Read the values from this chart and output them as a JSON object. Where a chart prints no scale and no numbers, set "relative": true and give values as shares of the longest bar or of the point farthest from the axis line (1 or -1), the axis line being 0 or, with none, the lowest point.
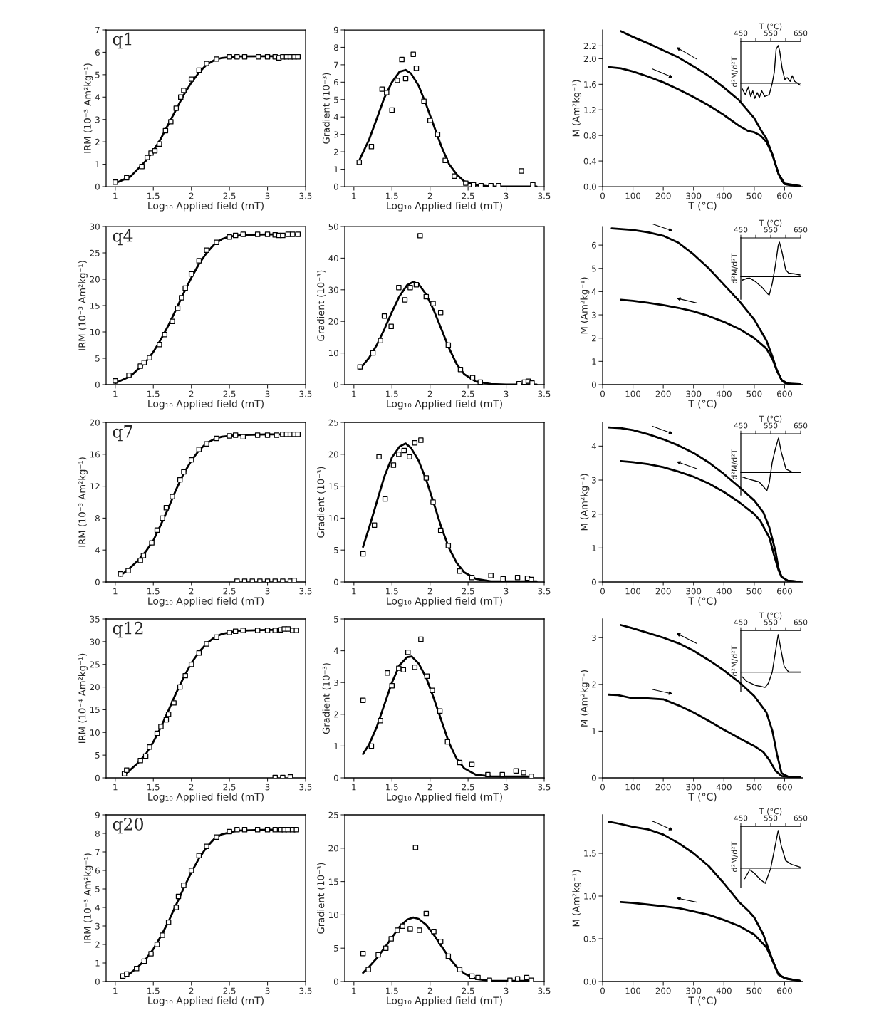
{
  "chart_data": [
    {
      "type": "scatter",
      "title": "q1",
      "xlabel": "Log₁₀ Applied field (mT)",
      "ylabel": "IRM (10⁻³ Am²kg⁻¹)",
      "xlim": [
        0.88,
        3.5
      ],
      "xticks": [
        1,
        1.5,
        2,
        2.5,
        3,
        3.5
      ],
      "ylim": [
        0,
        7
      ],
      "yticks": [
        0,
        1,
        2,
        3,
        4,
        5,
        6,
        7
      ],
      "series": [
        {
          "type": "scatter",
          "marker": "square",
          "color": "#000000",
          "x": [
            1.0,
            1.15,
            1.35,
            1.42,
            1.47,
            1.52,
            1.58,
            1.66,
            1.73,
            1.8,
            1.86,
            1.9,
            2.0,
            2.1,
            2.2,
            2.33,
            2.5,
            2.6,
            2.7,
            2.88,
            3.0,
            3.1,
            3.15,
            3.2,
            3.25,
            3.3,
            3.35,
            3.4
          ],
          "values": [
            0.2,
            0.4,
            0.9,
            1.3,
            1.5,
            1.6,
            1.9,
            2.5,
            2.9,
            3.5,
            4.0,
            4.3,
            4.8,
            5.2,
            5.5,
            5.7,
            5.8,
            5.8,
            5.8,
            5.8,
            5.8,
            5.8,
            5.75,
            5.8,
            5.8,
            5.8,
            5.8,
            5.8
          ]
        },
        {
          "type": "line",
          "color": "#000000",
          "x": [
            1.0,
            1.2,
            1.4,
            1.5,
            1.6,
            1.7,
            1.8,
            1.9,
            2.0,
            2.1,
            2.2,
            2.3,
            2.4,
            2.6,
            3.0,
            3.4
          ],
          "values": [
            0.15,
            0.45,
            1.15,
            1.6,
            2.15,
            2.8,
            3.45,
            4.1,
            4.65,
            5.1,
            5.45,
            5.65,
            5.75,
            5.82,
            5.83,
            5.83
          ]
        }
      ]
    },
    {
      "type": "scatter",
      "xlabel": "Log₁₀ Applied field (mT)",
      "ylabel": "Gradient (10⁻³)",
      "xlim": [
        0.88,
        3.5
      ],
      "xticks": [
        1,
        1.5,
        2,
        2.5,
        3,
        3.5
      ],
      "ylim": [
        0,
        9
      ],
      "yticks": [
        0,
        1,
        2,
        3,
        4,
        5,
        6,
        7,
        8,
        9
      ],
      "series": [
        {
          "type": "scatter",
          "marker": "square",
          "color": "#000000",
          "x": [
            1.07,
            1.23,
            1.37,
            1.43,
            1.5,
            1.57,
            1.63,
            1.68,
            1.78,
            1.82,
            1.92,
            2.0,
            2.1,
            2.2,
            2.32,
            2.47,
            2.57,
            2.67,
            2.8,
            2.9,
            3.2,
            3.35
          ],
          "values": [
            1.4,
            2.3,
            5.6,
            5.4,
            4.4,
            6.1,
            7.3,
            6.2,
            7.6,
            6.8,
            4.9,
            3.8,
            3.0,
            1.5,
            0.6,
            0.2,
            0.1,
            0.05,
            0.05,
            0.05,
            0.9,
            0.1
          ]
        },
        {
          "type": "line",
          "color": "#000000",
          "x": [
            1.07,
            1.2,
            1.3,
            1.4,
            1.5,
            1.6,
            1.68,
            1.75,
            1.85,
            1.95,
            2.05,
            2.15,
            2.25,
            2.35,
            2.45,
            2.6,
            2.8,
            3.4
          ],
          "values": [
            1.5,
            2.7,
            3.9,
            5.1,
            6.0,
            6.6,
            6.7,
            6.5,
            5.8,
            4.7,
            3.5,
            2.3,
            1.3,
            0.7,
            0.3,
            0.1,
            0.0,
            0.0
          ]
        }
      ]
    },
    {
      "type": "line",
      "xlabel": "T (°C)",
      "ylabel": "M (Am²kg⁻¹)",
      "xlim": [
        0,
        660
      ],
      "xticks": [
        0,
        100,
        200,
        300,
        400,
        500,
        600
      ],
      "ylim": [
        0,
        2.45
      ],
      "yticks": [
        {
          "value": 0,
          "label": "0.0"
        },
        0.4,
        0.8,
        1.2,
        1.6,
        {
          "value": 2,
          "label": "2.0"
        },
        2.2
      ],
      "series": [
        {
          "color": "#000000",
          "x": [
            20,
            60,
            100,
            150,
            200,
            250,
            300,
            350,
            400,
            450,
            480,
            500,
            520,
            540,
            560,
            570,
            580,
            590,
            600,
            620,
            650
          ],
          "values": [
            1.87,
            1.85,
            1.8,
            1.72,
            1.63,
            1.52,
            1.4,
            1.27,
            1.12,
            0.95,
            0.87,
            0.85,
            0.8,
            0.7,
            0.5,
            0.35,
            0.2,
            0.1,
            0.04,
            0.02,
            0.01
          ]
        },
        {
          "color": "#000000",
          "x": [
            650,
            600,
            580,
            560,
            540,
            520,
            500,
            450,
            400,
            350,
            300,
            250,
            200,
            150,
            100,
            60
          ],
          "values": [
            0.01,
            0.05,
            0.2,
            0.5,
            0.75,
            0.9,
            1.07,
            1.35,
            1.55,
            1.73,
            1.88,
            2.02,
            2.13,
            2.24,
            2.34,
            2.43
          ]
        }
      ]
    },
    {
      "type": "line",
      "relative": true,
      "xlabel": "T (°C)",
      "ylabel": "d²M/d²T",
      "xlim": [
        450,
        650
      ],
      "xticks": [
        450,
        {
          "value": 500,
          "label": null
        },
        550,
        {
          "value": 600,
          "label": null
        },
        650
      ],
      "series": [
        {
          "color": "#000000",
          "x": [
            455,
            465,
            475,
            483,
            490,
            497,
            505,
            512,
            520,
            530,
            545,
            555,
            562,
            568,
            575,
            580,
            588,
            597,
            605,
            615,
            622,
            630,
            640,
            648
          ],
          "values": [
            -0.15,
            -0.3,
            -0.1,
            -0.35,
            -0.2,
            -0.4,
            -0.25,
            -0.38,
            -0.2,
            -0.35,
            -0.3,
            0.0,
            0.3,
            0.9,
            1.0,
            0.85,
            0.4,
            0.1,
            0.15,
            0.05,
            0.2,
            0.05,
            0.0,
            -0.05
          ]
        }
      ]
    },
    {
      "type": "scatter",
      "title": "q4",
      "xlabel": "Log₁₀ Applied field (mT)",
      "ylabel": "IRM (10⁻³ Am²kg⁻¹)",
      "xlim": [
        0.88,
        3.5
      ],
      "xticks": [
        1,
        1.5,
        2,
        2.5,
        3,
        3.5
      ],
      "ylim": [
        0,
        30
      ],
      "yticks": [
        0,
        5,
        10,
        15,
        20,
        25,
        30
      ],
      "series": [
        {
          "type": "scatter",
          "marker": "square",
          "color": "#000000",
          "x": [
            1.0,
            1.18,
            1.33,
            1.38,
            1.45,
            1.58,
            1.65,
            1.75,
            1.82,
            1.87,
            1.92,
            2.0,
            2.1,
            2.2,
            2.33,
            2.5,
            2.58,
            2.68,
            2.87,
            3.0,
            3.1,
            3.15,
            3.2,
            3.27,
            3.33,
            3.4
          ],
          "values": [
            0.7,
            1.8,
            3.5,
            4.2,
            5.1,
            7.6,
            9.5,
            12,
            14.5,
            16.5,
            18.3,
            21,
            23.5,
            25.5,
            27,
            28,
            28.3,
            28.5,
            28.5,
            28.5,
            28.4,
            28.3,
            28.3,
            28.5,
            28.5,
            28.5
          ]
        },
        {
          "type": "line",
          "color": "#000000",
          "x": [
            1.0,
            1.2,
            1.4,
            1.5,
            1.6,
            1.7,
            1.8,
            1.9,
            2.0,
            2.1,
            2.2,
            2.3,
            2.4,
            2.5,
            2.7,
            3.0,
            3.4
          ],
          "values": [
            0.3,
            1.6,
            4.3,
            6.2,
            8.6,
            11.3,
            14.3,
            17.4,
            20.3,
            22.9,
            25.0,
            26.6,
            27.6,
            28.1,
            28.4,
            28.5,
            28.5
          ]
        }
      ]
    },
    {
      "type": "scatter",
      "xlabel": "Log₁₀ Applied field (mT)",
      "ylabel": "Gradient (10⁻³)",
      "xlim": [
        0.88,
        3.5
      ],
      "xticks": [
        1,
        1.5,
        2,
        2.5,
        3,
        3.5
      ],
      "ylim": [
        0,
        50
      ],
      "yticks": [
        0,
        10,
        20,
        30,
        40,
        50
      ],
      "series": [
        {
          "type": "scatter",
          "marker": "square",
          "color": "#000000",
          "x": [
            1.08,
            1.25,
            1.35,
            1.4,
            1.49,
            1.59,
            1.67,
            1.74,
            1.82,
            1.87,
            1.95,
            2.04,
            2.14,
            2.24,
            2.4,
            2.56,
            2.66,
            3.17,
            3.24,
            3.29,
            3.34
          ],
          "values": [
            5.6,
            10,
            13.9,
            21.7,
            18.4,
            30.7,
            26.8,
            30.7,
            31.6,
            47.1,
            27.8,
            25.6,
            22.8,
            12.5,
            4.8,
            2.2,
            0.8,
            0.3,
            0.8,
            1.1,
            0.5
          ]
        },
        {
          "type": "line",
          "color": "#000000",
          "x": [
            1.08,
            1.2,
            1.3,
            1.4,
            1.5,
            1.6,
            1.7,
            1.78,
            1.85,
            1.95,
            2.05,
            2.15,
            2.25,
            2.35,
            2.45,
            2.6,
            2.8,
            3.0,
            3.4
          ],
          "values": [
            5,
            8.5,
            12.5,
            17.5,
            23,
            28,
            31.5,
            32.5,
            31.8,
            28.5,
            23.5,
            17.5,
            11.5,
            6.5,
            3.3,
            1.0,
            0.2,
            0.0,
            0.0
          ]
        }
      ]
    },
    {
      "type": "line",
      "xlabel": "T (°C)",
      "ylabel": "M (Am²kg⁻¹)",
      "xlim": [
        0,
        660
      ],
      "xticks": [
        0,
        100,
        200,
        300,
        400,
        500,
        600
      ],
      "ylim": [
        0,
        6.8
      ],
      "yticks": [
        0,
        1,
        2,
        3,
        4,
        5,
        6
      ],
      "series": [
        {
          "color": "#000000",
          "x": [
            30,
            100,
            150,
            200,
            250,
            300,
            350,
            400,
            450,
            500,
            540,
            560,
            575,
            590,
            600,
            620,
            650
          ],
          "values": [
            6.72,
            6.65,
            6.55,
            6.4,
            6.1,
            5.6,
            5.0,
            4.3,
            3.6,
            2.8,
            1.9,
            1.2,
            0.6,
            0.2,
            0.08,
            0.03,
            0.02
          ]
        },
        {
          "color": "#000000",
          "x": [
            650,
            610,
            590,
            575,
            560,
            540,
            500,
            450,
            400,
            350,
            300,
            250,
            200,
            150,
            100,
            60
          ],
          "values": [
            0.02,
            0.05,
            0.2,
            0.6,
            1.1,
            1.55,
            2.0,
            2.4,
            2.7,
            2.95,
            3.15,
            3.3,
            3.42,
            3.52,
            3.6,
            3.65
          ]
        }
      ]
    },
    {
      "type": "line",
      "relative": true,
      "xlabel": "T (°C)",
      "ylabel": "d²M/d²T",
      "xlim": [
        450,
        650
      ],
      "xticks": [
        450,
        {
          "value": 500,
          "label": null
        },
        550,
        {
          "value": 600,
          "label": null
        },
        650
      ],
      "series": [
        {
          "color": "#000000",
          "x": [
            455,
            470,
            480,
            500,
            520,
            540,
            545,
            555,
            565,
            575,
            579,
            588,
            600,
            610,
            630,
            648
          ],
          "values": [
            -0.1,
            -0.05,
            -0.04,
            -0.15,
            -0.3,
            -0.5,
            -0.53,
            -0.2,
            0.3,
            0.9,
            1.0,
            0.7,
            0.2,
            0.1,
            0.08,
            0.05
          ]
        }
      ]
    },
    {
      "type": "scatter",
      "title": "q7",
      "xlabel": "Log₁₀ Applied field (mT)",
      "ylabel": "IRM (10⁻³ Am²kg⁻¹)",
      "xlim": [
        0.88,
        3.5
      ],
      "xticks": [
        1,
        1.5,
        2,
        2.5,
        3,
        3.5
      ],
      "ylim": [
        0,
        20
      ],
      "yticks": [
        0,
        4,
        8,
        12,
        16,
        20
      ],
      "series": [
        {
          "type": "scatter",
          "marker": "square",
          "color": "#000000",
          "x": [
            1.07,
            1.17,
            1.33,
            1.37,
            1.48,
            1.55,
            1.62,
            1.67,
            1.75,
            1.85,
            1.9,
            2.0,
            2.1,
            2.2,
            2.33,
            2.5,
            2.58,
            2.68,
            2.87,
            3.0,
            3.12,
            3.2,
            3.25,
            3.3,
            3.35,
            3.4
          ],
          "values": [
            1.0,
            1.4,
            2.7,
            3.3,
            4.9,
            6.5,
            8.0,
            9.3,
            10.7,
            12.8,
            13.8,
            15.3,
            16.6,
            17.3,
            18.0,
            18.3,
            18.4,
            18.2,
            18.4,
            18.4,
            18.4,
            18.5,
            18.5,
            18.5,
            18.5,
            18.5
          ]
        },
        {
          "type": "scatter",
          "marker": "square",
          "color": "#000000",
          "x": [
            2.6,
            2.7,
            2.8,
            2.9,
            3.0,
            3.1,
            3.2,
            3.3,
            3.35
          ],
          "values": [
            0.1,
            0.1,
            0.1,
            0.1,
            0.1,
            0.1,
            0.1,
            0.1,
            0.2
          ]
        },
        {
          "type": "line",
          "color": "#000000",
          "x": [
            1.07,
            1.2,
            1.3,
            1.4,
            1.5,
            1.6,
            1.7,
            1.8,
            1.9,
            2.0,
            2.1,
            2.2,
            2.3,
            2.4,
            2.6,
            3.0,
            3.4
          ],
          "values": [
            0.8,
            1.8,
            2.7,
            3.8,
            5.2,
            7.2,
            9.3,
            11.6,
            13.6,
            15.2,
            16.5,
            17.4,
            17.9,
            18.2,
            18.4,
            18.5,
            18.5
          ]
        }
      ]
    },
    {
      "type": "scatter",
      "xlabel": "Log₁₀ Applied field (mT)",
      "ylabel": "Gradient (10⁻³)",
      "xlim": [
        0.88,
        3.5
      ],
      "xticks": [
        1,
        1.5,
        2,
        2.5,
        3,
        3.5
      ],
      "ylim": [
        0,
        25
      ],
      "yticks": [
        0,
        5,
        10,
        15,
        20,
        25
      ],
      "series": [
        {
          "type": "scatter",
          "marker": "square",
          "color": "#000000",
          "x": [
            1.12,
            1.27,
            1.33,
            1.41,
            1.52,
            1.59,
            1.66,
            1.73,
            1.8,
            1.88,
            1.95,
            2.04,
            2.14,
            2.24,
            2.39,
            2.55,
            2.8,
            2.96,
            3.15,
            3.28,
            3.33
          ],
          "values": [
            4.4,
            8.9,
            19.6,
            13.0,
            18.3,
            20.0,
            20.6,
            19.6,
            21.8,
            22.2,
            16.3,
            12.5,
            8.1,
            5.7,
            1.7,
            0.7,
            1.0,
            0.5,
            0.7,
            0.6,
            0.4
          ]
        },
        {
          "type": "line",
          "color": "#000000",
          "x": [
            1.12,
            1.2,
            1.3,
            1.4,
            1.5,
            1.6,
            1.68,
            1.75,
            1.85,
            1.95,
            2.05,
            2.15,
            2.25,
            2.35,
            2.45,
            2.6,
            2.8,
            3.0,
            3.4
          ],
          "values": [
            5.5,
            8.5,
            12.5,
            16.5,
            19.5,
            21.2,
            21.7,
            21.0,
            19.0,
            16.0,
            12.3,
            8.5,
            5.3,
            3.0,
            1.5,
            0.5,
            0.1,
            0.1,
            0.1
          ]
        }
      ]
    },
    {
      "type": "line",
      "xlabel": "T (°C)",
      "ylabel": "M (Am²kg⁻¹)",
      "xlim": [
        0,
        660
      ],
      "xticks": [
        0,
        100,
        200,
        300,
        400,
        500,
        600
      ],
      "ylim": [
        0,
        4.7
      ],
      "yticks": [
        0,
        1,
        2,
        3,
        4
      ],
      "series": [
        {
          "color": "#000000",
          "x": [
            20,
            60,
            100,
            150,
            200,
            250,
            300,
            350,
            400,
            450,
            500,
            530,
            550,
            570,
            580,
            590,
            610,
            650
          ],
          "values": [
            4.55,
            4.53,
            4.47,
            4.35,
            4.2,
            4.02,
            3.8,
            3.52,
            3.18,
            2.8,
            2.4,
            2.05,
            1.6,
            0.9,
            0.4,
            0.15,
            0.04,
            0.0
          ]
        },
        {
          "color": "#000000",
          "x": [
            650,
            610,
            590,
            580,
            565,
            550,
            520,
            500,
            450,
            400,
            350,
            300,
            250,
            200,
            150,
            100,
            60
          ],
          "values": [
            0.0,
            0.04,
            0.15,
            0.35,
            0.8,
            1.3,
            1.8,
            2.0,
            2.35,
            2.65,
            2.9,
            3.1,
            3.25,
            3.38,
            3.47,
            3.53,
            3.56
          ]
        }
      ]
    },
    {
      "type": "line",
      "relative": true,
      "xlabel": "T (°C)",
      "ylabel": "d²M/d²T",
      "xlim": [
        450,
        650
      ],
      "xticks": [
        450,
        {
          "value": 500,
          "label": null
        },
        550,
        {
          "value": 600,
          "label": null
        },
        650
      ],
      "series": [
        {
          "color": "#000000",
          "x": [
            455,
            480,
            511,
            525,
            537,
            545,
            555,
            566,
            576,
            585,
            601,
            620,
            650
          ],
          "values": [
            -0.13,
            -0.2,
            -0.27,
            -0.4,
            -0.53,
            -0.3,
            0.3,
            0.7,
            1.0,
            0.6,
            0.1,
            0.02,
            0.0
          ]
        }
      ]
    },
    {
      "type": "scatter",
      "title": "q12",
      "xlabel": "Log₁₀ Applied field (mT)",
      "ylabel": "IRM (10⁻⁴ Am²kg⁻¹)",
      "xlim": [
        0.88,
        3.5
      ],
      "xticks": [
        1,
        {
          "value": 1.5,
          "label": "1,5"
        },
        2,
        {
          "value": 2.5,
          "label": "2,5"
        },
        3,
        {
          "value": 3.5,
          "label": "3,5"
        }
      ],
      "ylim": [
        0,
        35
      ],
      "yticks": [
        0,
        5,
        10,
        15,
        20,
        25,
        30,
        35
      ],
      "series": [
        {
          "type": "scatter",
          "marker": "square",
          "color": "#000000",
          "x": [
            1.12,
            1.15,
            1.33,
            1.4,
            1.45,
            1.55,
            1.6,
            1.67,
            1.7,
            1.77,
            1.85,
            1.92,
            2.0,
            2.1,
            2.2,
            2.33,
            2.5,
            2.58,
            2.68,
            2.87,
            3.0,
            3.1,
            3.17,
            3.22,
            3.27,
            3.33,
            3.38
          ],
          "values": [
            0.9,
            1.7,
            3.8,
            4.8,
            6.8,
            9.8,
            11.3,
            12.8,
            14.0,
            16.5,
            20.0,
            22.5,
            25.0,
            27.5,
            29.5,
            31.0,
            32.0,
            32.3,
            32.5,
            32.5,
            32.5,
            32.5,
            32.6,
            32.8,
            32.8,
            32.5,
            32.5
          ]
        },
        {
          "type": "scatter",
          "marker": "square",
          "color": "#000000",
          "x": [
            3.1,
            3.2,
            3.3
          ],
          "values": [
            0.1,
            0.1,
            0.2
          ]
        },
        {
          "type": "line",
          "color": "#000000",
          "x": [
            1.12,
            1.2,
            1.3,
            1.4,
            1.5,
            1.6,
            1.7,
            1.8,
            1.9,
            2.0,
            2.1,
            2.2,
            2.3,
            2.4,
            2.6,
            3.0,
            3.4
          ],
          "values": [
            0.7,
            1.8,
            3.3,
            5.2,
            7.9,
            11.2,
            14.9,
            18.7,
            22.2,
            25.3,
            27.7,
            29.6,
            30.9,
            31.7,
            32.4,
            32.6,
            32.6
          ]
        }
      ]
    },
    {
      "type": "scatter",
      "xlabel": "Log₁₀ Applied field (mT)",
      "ylabel": "Gradient (10⁻³)",
      "xlim": [
        0.88,
        3.5
      ],
      "xticks": [
        1,
        1.5,
        2,
        2.5,
        3,
        3.5
      ],
      "ylim": [
        0,
        5
      ],
      "yticks": [
        0,
        1,
        2,
        3,
        4,
        5
      ],
      "series": [
        {
          "type": "scatter",
          "marker": "square",
          "color": "#000000",
          "x": [
            1.12,
            1.23,
            1.35,
            1.44,
            1.5,
            1.59,
            1.65,
            1.71,
            1.8,
            1.88,
            1.96,
            2.03,
            2.13,
            2.23,
            2.39,
            2.55,
            2.76,
            2.95,
            3.13,
            3.23,
            3.33
          ],
          "values": [
            2.44,
            1.0,
            1.8,
            3.3,
            2.9,
            3.45,
            3.4,
            3.95,
            3.48,
            4.36,
            3.2,
            2.75,
            2.1,
            1.13,
            0.48,
            0.42,
            0.1,
            0.1,
            0.22,
            0.16,
            0.05
          ]
        },
        {
          "type": "line",
          "color": "#000000",
          "x": [
            1.12,
            1.2,
            1.3,
            1.4,
            1.5,
            1.6,
            1.7,
            1.76,
            1.85,
            1.95,
            2.05,
            2.15,
            2.25,
            2.35,
            2.45,
            2.6,
            2.8,
            3.0,
            3.35
          ],
          "values": [
            0.75,
            1.05,
            1.6,
            2.3,
            3.0,
            3.55,
            3.8,
            3.82,
            3.6,
            3.15,
            2.5,
            1.8,
            1.1,
            0.6,
            0.3,
            0.1,
            0.05,
            0.04,
            0.04
          ]
        }
      ]
    },
    {
      "type": "line",
      "xlabel": "T (°C)",
      "ylabel": "M (Am²kg⁻¹)",
      "xlim": [
        0,
        660
      ],
      "xticks": [
        0,
        100,
        200,
        300,
        400,
        500,
        600
      ],
      "ylim": [
        0,
        3.4
      ],
      "yticks": [
        0,
        1,
        2,
        3
      ],
      "series": [
        {
          "color": "#000000",
          "x": [
            20,
            50,
            100,
            150,
            200,
            250,
            300,
            350,
            400,
            450,
            500,
            530,
            550,
            570,
            590,
            620,
            650
          ],
          "values": [
            1.78,
            1.77,
            1.7,
            1.7,
            1.68,
            1.55,
            1.4,
            1.22,
            1.03,
            0.85,
            0.68,
            0.55,
            0.38,
            0.15,
            0.04,
            0.02,
            0.02
          ]
        },
        {
          "color": "#000000",
          "x": [
            650,
            610,
            590,
            575,
            560,
            540,
            500,
            450,
            400,
            350,
            300,
            250,
            200,
            150,
            100,
            60
          ],
          "values": [
            0.0,
            0.03,
            0.1,
            0.5,
            1.0,
            1.4,
            1.75,
            2.05,
            2.3,
            2.52,
            2.72,
            2.88,
            3.0,
            3.1,
            3.2,
            3.27
          ]
        }
      ]
    },
    {
      "type": "line",
      "relative": true,
      "xlabel": "T (°C)",
      "ylabel": "d²M/d²T",
      "xlim": [
        450,
        650
      ],
      "xticks": [
        450,
        {
          "value": 500,
          "label": null
        },
        550,
        {
          "value": 600,
          "label": null
        },
        650
      ],
      "series": [
        {
          "color": "#000000",
          "x": [
            455,
            470,
            500,
            515,
            531,
            542,
            555,
            565,
            575,
            584,
            595,
            610,
            630,
            650
          ],
          "values": [
            -0.13,
            -0.25,
            -0.36,
            -0.38,
            -0.41,
            -0.3,
            0.0,
            0.5,
            1.0,
            0.6,
            0.15,
            0.0,
            0.0,
            0.0
          ]
        }
      ]
    },
    {
      "type": "scatter",
      "title": "q20",
      "xlabel": "Log₁₀ Applied field (mT)",
      "ylabel": "IRM (10⁻³ Am²kg⁻¹)",
      "xlim": [
        0.88,
        3.5
      ],
      "xticks": [
        1,
        1.5,
        2,
        2.5,
        3,
        3.5
      ],
      "ylim": [
        0,
        9
      ],
      "yticks": [
        0,
        1,
        2,
        3,
        4,
        5,
        6,
        7,
        8,
        9
      ],
      "series": [
        {
          "type": "scatter",
          "marker": "square",
          "color": "#000000",
          "x": [
            1.1,
            1.15,
            1.28,
            1.38,
            1.47,
            1.55,
            1.62,
            1.7,
            1.8,
            1.83,
            1.9,
            2.0,
            2.1,
            2.2,
            2.33,
            2.5,
            2.6,
            2.7,
            2.87,
            3.0,
            3.1,
            3.17,
            3.22,
            3.27,
            3.33,
            3.38
          ],
          "values": [
            0.3,
            0.4,
            0.7,
            1.1,
            1.5,
            2.0,
            2.5,
            3.2,
            4.0,
            4.6,
            5.2,
            6.0,
            6.8,
            7.3,
            7.8,
            8.1,
            8.2,
            8.2,
            8.2,
            8.2,
            8.2,
            8.2,
            8.2,
            8.2,
            8.2,
            8.2
          ]
        },
        {
          "type": "line",
          "color": "#000000",
          "x": [
            1.1,
            1.2,
            1.3,
            1.4,
            1.5,
            1.6,
            1.7,
            1.8,
            1.9,
            2.0,
            2.1,
            2.2,
            2.3,
            2.4,
            2.6,
            3.0,
            3.4
          ],
          "values": [
            0.2,
            0.45,
            0.8,
            1.2,
            1.75,
            2.45,
            3.25,
            4.15,
            5.05,
            5.9,
            6.65,
            7.25,
            7.7,
            7.95,
            8.15,
            8.2,
            8.2
          ]
        }
      ]
    },
    {
      "type": "scatter",
      "xlabel": "Log₁₀ Applied field (mT)",
      "ylabel": "Gradient (10⁻³)",
      "xlim": [
        0.88,
        3.5
      ],
      "xticks": [
        1,
        1.5,
        2,
        2.5,
        3,
        3.5
      ],
      "ylim": [
        0,
        25
      ],
      "yticks": [
        0,
        5,
        10,
        15,
        20,
        25
      ],
      "series": [
        {
          "type": "scatter",
          "marker": "square",
          "color": "#000000",
          "x": [
            1.12,
            1.19,
            1.32,
            1.42,
            1.49,
            1.57,
            1.64,
            1.74,
            1.81,
            1.86,
            1.95,
            2.05,
            2.14,
            2.24,
            2.39,
            2.55,
            2.63,
            2.78,
            3.05,
            3.15,
            3.27,
            3.33
          ],
          "values": [
            4.2,
            1.8,
            4.0,
            5.0,
            6.4,
            7.7,
            8.3,
            7.9,
            20.1,
            7.7,
            10.2,
            7.5,
            6.0,
            3.8,
            1.8,
            0.8,
            0.6,
            0.2,
            0.2,
            0.4,
            0.6,
            0.2
          ]
        },
        {
          "type": "line",
          "color": "#000000",
          "x": [
            1.12,
            1.2,
            1.3,
            1.4,
            1.5,
            1.6,
            1.7,
            1.78,
            1.85,
            1.95,
            2.05,
            2.15,
            2.25,
            2.35,
            2.45,
            2.6,
            2.8,
            3.0,
            3.35
          ],
          "values": [
            1.3,
            2.2,
            3.5,
            5.0,
            6.6,
            8.2,
            9.3,
            9.6,
            9.4,
            8.5,
            7.0,
            5.3,
            3.6,
            2.2,
            1.2,
            0.4,
            0.1,
            0.1,
            0.1
          ]
        }
      ]
    },
    {
      "type": "line",
      "xlabel": "T (°C)",
      "ylabel": "M (Am²kg⁻¹)",
      "xlim": [
        0,
        660
      ],
      "xticks": [
        0,
        100,
        200,
        300,
        400,
        500,
        600
      ],
      "ylim": [
        0,
        1.95
      ],
      "yticks": [
        {
          "value": 0,
          "label": "0.0"
        },
        0.5,
        {
          "value": 1,
          "label": "1.0"
        },
        1.5
      ],
      "series": [
        {
          "color": "#000000",
          "x": [
            20,
            50,
            100,
            150,
            200,
            250,
            300,
            350,
            400,
            450,
            480,
            500,
            530,
            560,
            580,
            600,
            630,
            650
          ],
          "values": [
            1.87,
            1.85,
            1.81,
            1.78,
            1.72,
            1.62,
            1.5,
            1.35,
            1.15,
            0.93,
            0.83,
            0.75,
            0.55,
            0.25,
            0.08,
            0.04,
            0.02,
            0.01
          ]
        },
        {
          "color": "#000000",
          "x": [
            650,
            610,
            590,
            575,
            560,
            540,
            500,
            450,
            400,
            350,
            300,
            250,
            200,
            150,
            100,
            60
          ],
          "values": [
            0.01,
            0.03,
            0.06,
            0.12,
            0.25,
            0.4,
            0.55,
            0.65,
            0.72,
            0.78,
            0.82,
            0.86,
            0.88,
            0.9,
            0.92,
            0.93
          ]
        }
      ]
    },
    {
      "type": "line",
      "relative": true,
      "xlabel": "T (°C)",
      "ylabel": "d²M/d²T",
      "xlim": [
        450,
        650
      ],
      "xticks": [
        450,
        {
          "value": 500,
          "label": null
        },
        550,
        {
          "value": 600,
          "label": null
        },
        650
      ],
      "series": [
        {
          "color": "#000000",
          "x": [
            463,
            480,
            495,
            515,
            532,
            550,
            565,
            575,
            585,
            600,
            620,
            648
          ],
          "values": [
            -0.28,
            -0.04,
            -0.13,
            -0.3,
            -0.4,
            0.0,
            0.6,
            1.0,
            0.6,
            0.2,
            0.1,
            0.03
          ]
        }
      ]
    }
  ]
}
